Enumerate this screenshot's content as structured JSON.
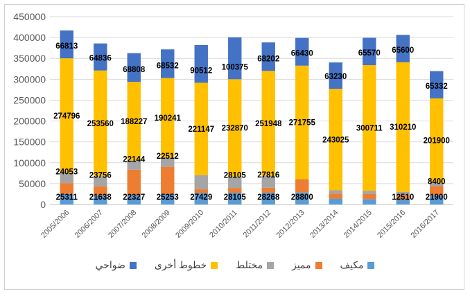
{
  "chart_data": {
    "type": "bar",
    "stacked": true,
    "categories": [
      "2005/2006",
      "2006/2007",
      "2007/2008",
      "2008/2009",
      "2009/2010",
      "2010/2011",
      "2011/2012",
      "2012/2013",
      "2013/2014",
      "2014/2015",
      "2015/2016",
      "2016/2017"
    ],
    "ylim": [
      0,
      450000
    ],
    "yticks": [
      "0",
      "50000",
      "100000",
      "150000",
      "200000",
      "250000",
      "300000",
      "350000",
      "400000",
      "450000"
    ],
    "series": [
      {
        "name": "مكيف",
        "color": "#5B9BD5",
        "values": [
          25311,
          21638,
          22327,
          25253,
          27429,
          28105,
          28268,
          28800,
          14000,
          13000,
          12510,
          21900
        ],
        "labels": [
          "25311",
          "21638",
          "22327",
          "25253",
          "27429",
          "28105",
          "28268",
          "28800",
          "",
          "",
          "12510",
          "21900"
        ]
      },
      {
        "name": "مميز",
        "color": "#ED7D31",
        "values": [
          26000,
          22000,
          61000,
          65000,
          9000,
          11000,
          12000,
          32000,
          12000,
          12000,
          10000,
          22000
        ],
        "labels": [
          "",
          "",
          "",
          "",
          "",
          "",
          "",
          "",
          "",
          "",
          "",
          ""
        ]
      },
      {
        "name": "مختلط",
        "color": "#A5A5A5",
        "values": [
          24053,
          23756,
          22144,
          22512,
          34000,
          28105,
          27816,
          0,
          8000,
          8000,
          8000,
          8400
        ],
        "labels": [
          "24053",
          "23756",
          "22144",
          "22512",
          "",
          "28105",
          "27816",
          "",
          "",
          "",
          "",
          "8400"
        ]
      },
      {
        "name": "خطوط أخرى",
        "color": "#FFC000",
        "values": [
          274796,
          253560,
          188227,
          190241,
          221147,
          232870,
          251948,
          271755,
          243025,
          300711,
          310210,
          201900
        ],
        "labels": [
          "274796",
          "253560",
          "188227",
          "190241",
          "221147",
          "232870",
          "251948",
          "271755",
          "243025",
          "300711",
          "310210",
          "201900"
        ]
      },
      {
        "name": "ضواحي",
        "color": "#4472C4",
        "values": [
          66813,
          64836,
          68808,
          68532,
          90512,
          100375,
          68202,
          66430,
          63230,
          65570,
          65600,
          65332
        ],
        "labels": [
          "66813",
          "64836",
          "68808",
          "68532",
          "90512",
          "100375",
          "68202",
          "66430",
          "63230",
          "65570",
          "65600",
          "65332"
        ]
      }
    ]
  }
}
